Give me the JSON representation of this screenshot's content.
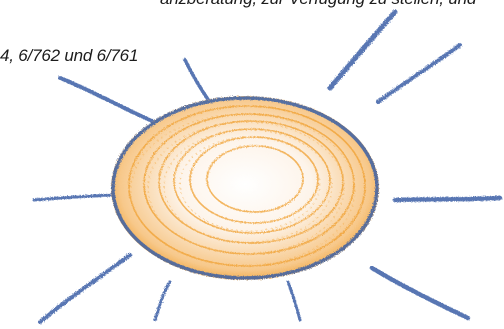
{
  "text": {
    "line_1": "anzberatung, zur Verfügung zu stellen, und",
    "line_2": "4, 6/762 und 6/761"
  },
  "illustration": {
    "name": "crayon-sun",
    "ray_color": "#3a5fa6",
    "sun_outline_color": "#3a5fa6",
    "sun_fill_color": "#f0a030"
  }
}
